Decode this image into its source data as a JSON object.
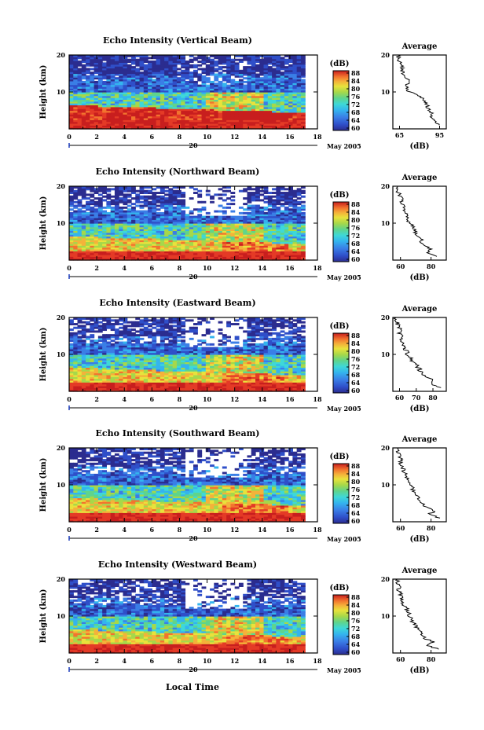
{
  "chart_data": [
    {
      "type": "heatmap",
      "title": "Echo Intensity (Vertical Beam)",
      "ylabel": "Height (km)",
      "x_ticks": [
        "0",
        "2",
        "4",
        "6",
        "8",
        "10",
        "12",
        "14",
        "16",
        "18"
      ],
      "y_ticks": [
        "10",
        "20"
      ],
      "date_label": "20",
      "month_year": "May 2005",
      "colorbar_title": "(dB)",
      "colorbar_ticks": [
        "60",
        "64",
        "68",
        "72",
        "76",
        "80",
        "84",
        "88"
      ],
      "xlim": [
        0,
        18
      ],
      "ylim": [
        0,
        20
      ],
      "zlim": [
        60,
        88
      ],
      "avg_title": "Average",
      "avg_xlabel": "(dB)",
      "avg_xticks": [
        "65",
        "95"
      ],
      "avg_yticks": [
        "10",
        "20"
      ],
      "avg_xlim": [
        60,
        100
      ],
      "profile_heights": [
        1,
        2,
        3,
        4,
        5,
        6,
        7,
        8,
        9,
        10,
        11,
        12,
        13,
        14,
        15,
        16,
        17,
        18,
        19,
        20
      ],
      "profile_values": [
        95,
        92,
        88,
        90,
        87,
        86,
        85,
        83,
        80,
        72,
        70,
        71,
        73,
        70,
        68,
        67,
        67,
        65,
        64,
        64
      ]
    },
    {
      "type": "heatmap",
      "title": "Echo Intensity (Northward Beam)",
      "ylabel": "Height (km)",
      "x_ticks": [
        "0",
        "2",
        "4",
        "6",
        "8",
        "10",
        "12",
        "14",
        "16",
        "18"
      ],
      "y_ticks": [
        "10",
        "20"
      ],
      "date_label": "20",
      "month_year": "May 2005",
      "colorbar_title": "(dB)",
      "colorbar_ticks": [
        "60",
        "64",
        "68",
        "72",
        "76",
        "80",
        "84",
        "88"
      ],
      "xlim": [
        0,
        18
      ],
      "ylim": [
        0,
        20
      ],
      "zlim": [
        60,
        88
      ],
      "avg_title": "Average",
      "avg_xlabel": "(dB)",
      "avg_xticks": [
        "60",
        "80"
      ],
      "avg_yticks": [
        "10",
        "20"
      ],
      "avg_xlim": [
        55,
        90
      ],
      "profile_heights": [
        1,
        2,
        3,
        4,
        5,
        6,
        7,
        8,
        9,
        10,
        11,
        12,
        13,
        14,
        15,
        16,
        17,
        18,
        19,
        20
      ],
      "profile_values": [
        84,
        78,
        80,
        76,
        74,
        73,
        70,
        69,
        68,
        66,
        65,
        64,
        63,
        62,
        61,
        61,
        60,
        59,
        58,
        58
      ]
    },
    {
      "type": "heatmap",
      "title": "Echo Intensity (Eastward Beam)",
      "ylabel": "Height (km)",
      "x_ticks": [
        "0",
        "2",
        "4",
        "6",
        "8",
        "10",
        "12",
        "14",
        "16",
        "18"
      ],
      "y_ticks": [
        "10",
        "20"
      ],
      "date_label": "20",
      "month_year": "May 2005",
      "colorbar_title": "(dB)",
      "colorbar_ticks": [
        "60",
        "64",
        "68",
        "72",
        "76",
        "80",
        "84",
        "88"
      ],
      "xlim": [
        0,
        18
      ],
      "ylim": [
        0,
        20
      ],
      "zlim": [
        60,
        88
      ],
      "avg_title": "Average",
      "avg_xlabel": "(dB)",
      "avg_xticks": [
        "60",
        "70",
        "80"
      ],
      "avg_yticks": [
        "10",
        "20"
      ],
      "avg_xlim": [
        56,
        88
      ],
      "profile_heights": [
        1,
        2,
        3,
        4,
        5,
        6,
        7,
        8,
        9,
        10,
        11,
        12,
        13,
        14,
        15,
        16,
        17,
        18,
        19,
        20
      ],
      "profile_values": [
        85,
        78,
        80,
        75,
        73,
        72,
        70,
        68,
        67,
        65,
        64,
        63,
        62,
        61,
        61,
        60,
        60,
        59,
        58,
        58
      ]
    },
    {
      "type": "heatmap",
      "title": "Echo Intensity (Southward Beam)",
      "ylabel": "Height (km)",
      "x_ticks": [
        "0",
        "2",
        "4",
        "6",
        "8",
        "10",
        "12",
        "14",
        "16",
        "18"
      ],
      "y_ticks": [
        "10",
        "20"
      ],
      "date_label": "20",
      "month_year": "May 2005",
      "colorbar_title": "(dB)",
      "colorbar_ticks": [
        "60",
        "64",
        "68",
        "72",
        "76",
        "80",
        "84",
        "88"
      ],
      "xlim": [
        0,
        18
      ],
      "ylim": [
        0,
        20
      ],
      "zlim": [
        60,
        88
      ],
      "avg_title": "Average",
      "avg_xlabel": "(dB)",
      "avg_xticks": [
        "60",
        "80"
      ],
      "avg_yticks": [
        "10",
        "20"
      ],
      "avg_xlim": [
        55,
        90
      ],
      "profile_heights": [
        1,
        2,
        3,
        4,
        5,
        6,
        7,
        8,
        9,
        10,
        11,
        12,
        13,
        14,
        15,
        16,
        17,
        18,
        19,
        20
      ],
      "profile_values": [
        86,
        79,
        82,
        76,
        74,
        72,
        71,
        69,
        68,
        66,
        65,
        64,
        63,
        62,
        61,
        60,
        60,
        59,
        58,
        58
      ]
    },
    {
      "type": "heatmap",
      "title": "Echo Intensity (Westward Beam)",
      "ylabel": "Height (km)",
      "x_ticks": [
        "0",
        "2",
        "4",
        "6",
        "8",
        "10",
        "12",
        "14",
        "16",
        "18"
      ],
      "y_ticks": [
        "10",
        "20"
      ],
      "date_label": "20",
      "month_year": "May 2005",
      "colorbar_title": "(dB)",
      "colorbar_ticks": [
        "60",
        "64",
        "68",
        "72",
        "76",
        "80",
        "84",
        "88"
      ],
      "xlim": [
        0,
        18
      ],
      "ylim": [
        0,
        20
      ],
      "zlim": [
        60,
        88
      ],
      "avg_title": "Average",
      "avg_xlabel": "(dB)",
      "avg_xticks": [
        "60",
        "80"
      ],
      "avg_yticks": [
        "10",
        "20"
      ],
      "avg_xlim": [
        55,
        90
      ],
      "profile_heights": [
        1,
        2,
        3,
        4,
        5,
        6,
        7,
        8,
        9,
        10,
        11,
        12,
        13,
        14,
        15,
        16,
        17,
        18,
        19,
        20
      ],
      "profile_values": [
        85,
        78,
        81,
        76,
        74,
        72,
        70,
        69,
        67,
        66,
        65,
        64,
        62,
        61,
        61,
        60,
        59,
        59,
        58,
        58
      ]
    }
  ],
  "footer": {
    "xlabel": "Local Time"
  },
  "colors": {
    "colormap": [
      "#2b2c8f",
      "#2f4fc9",
      "#3a7ee6",
      "#34b4ee",
      "#3ed8d8",
      "#5fd48c",
      "#a6d84a",
      "#e8e23c",
      "#f4b23a",
      "#f2742e",
      "#e43a26",
      "#c81e1e"
    ]
  }
}
